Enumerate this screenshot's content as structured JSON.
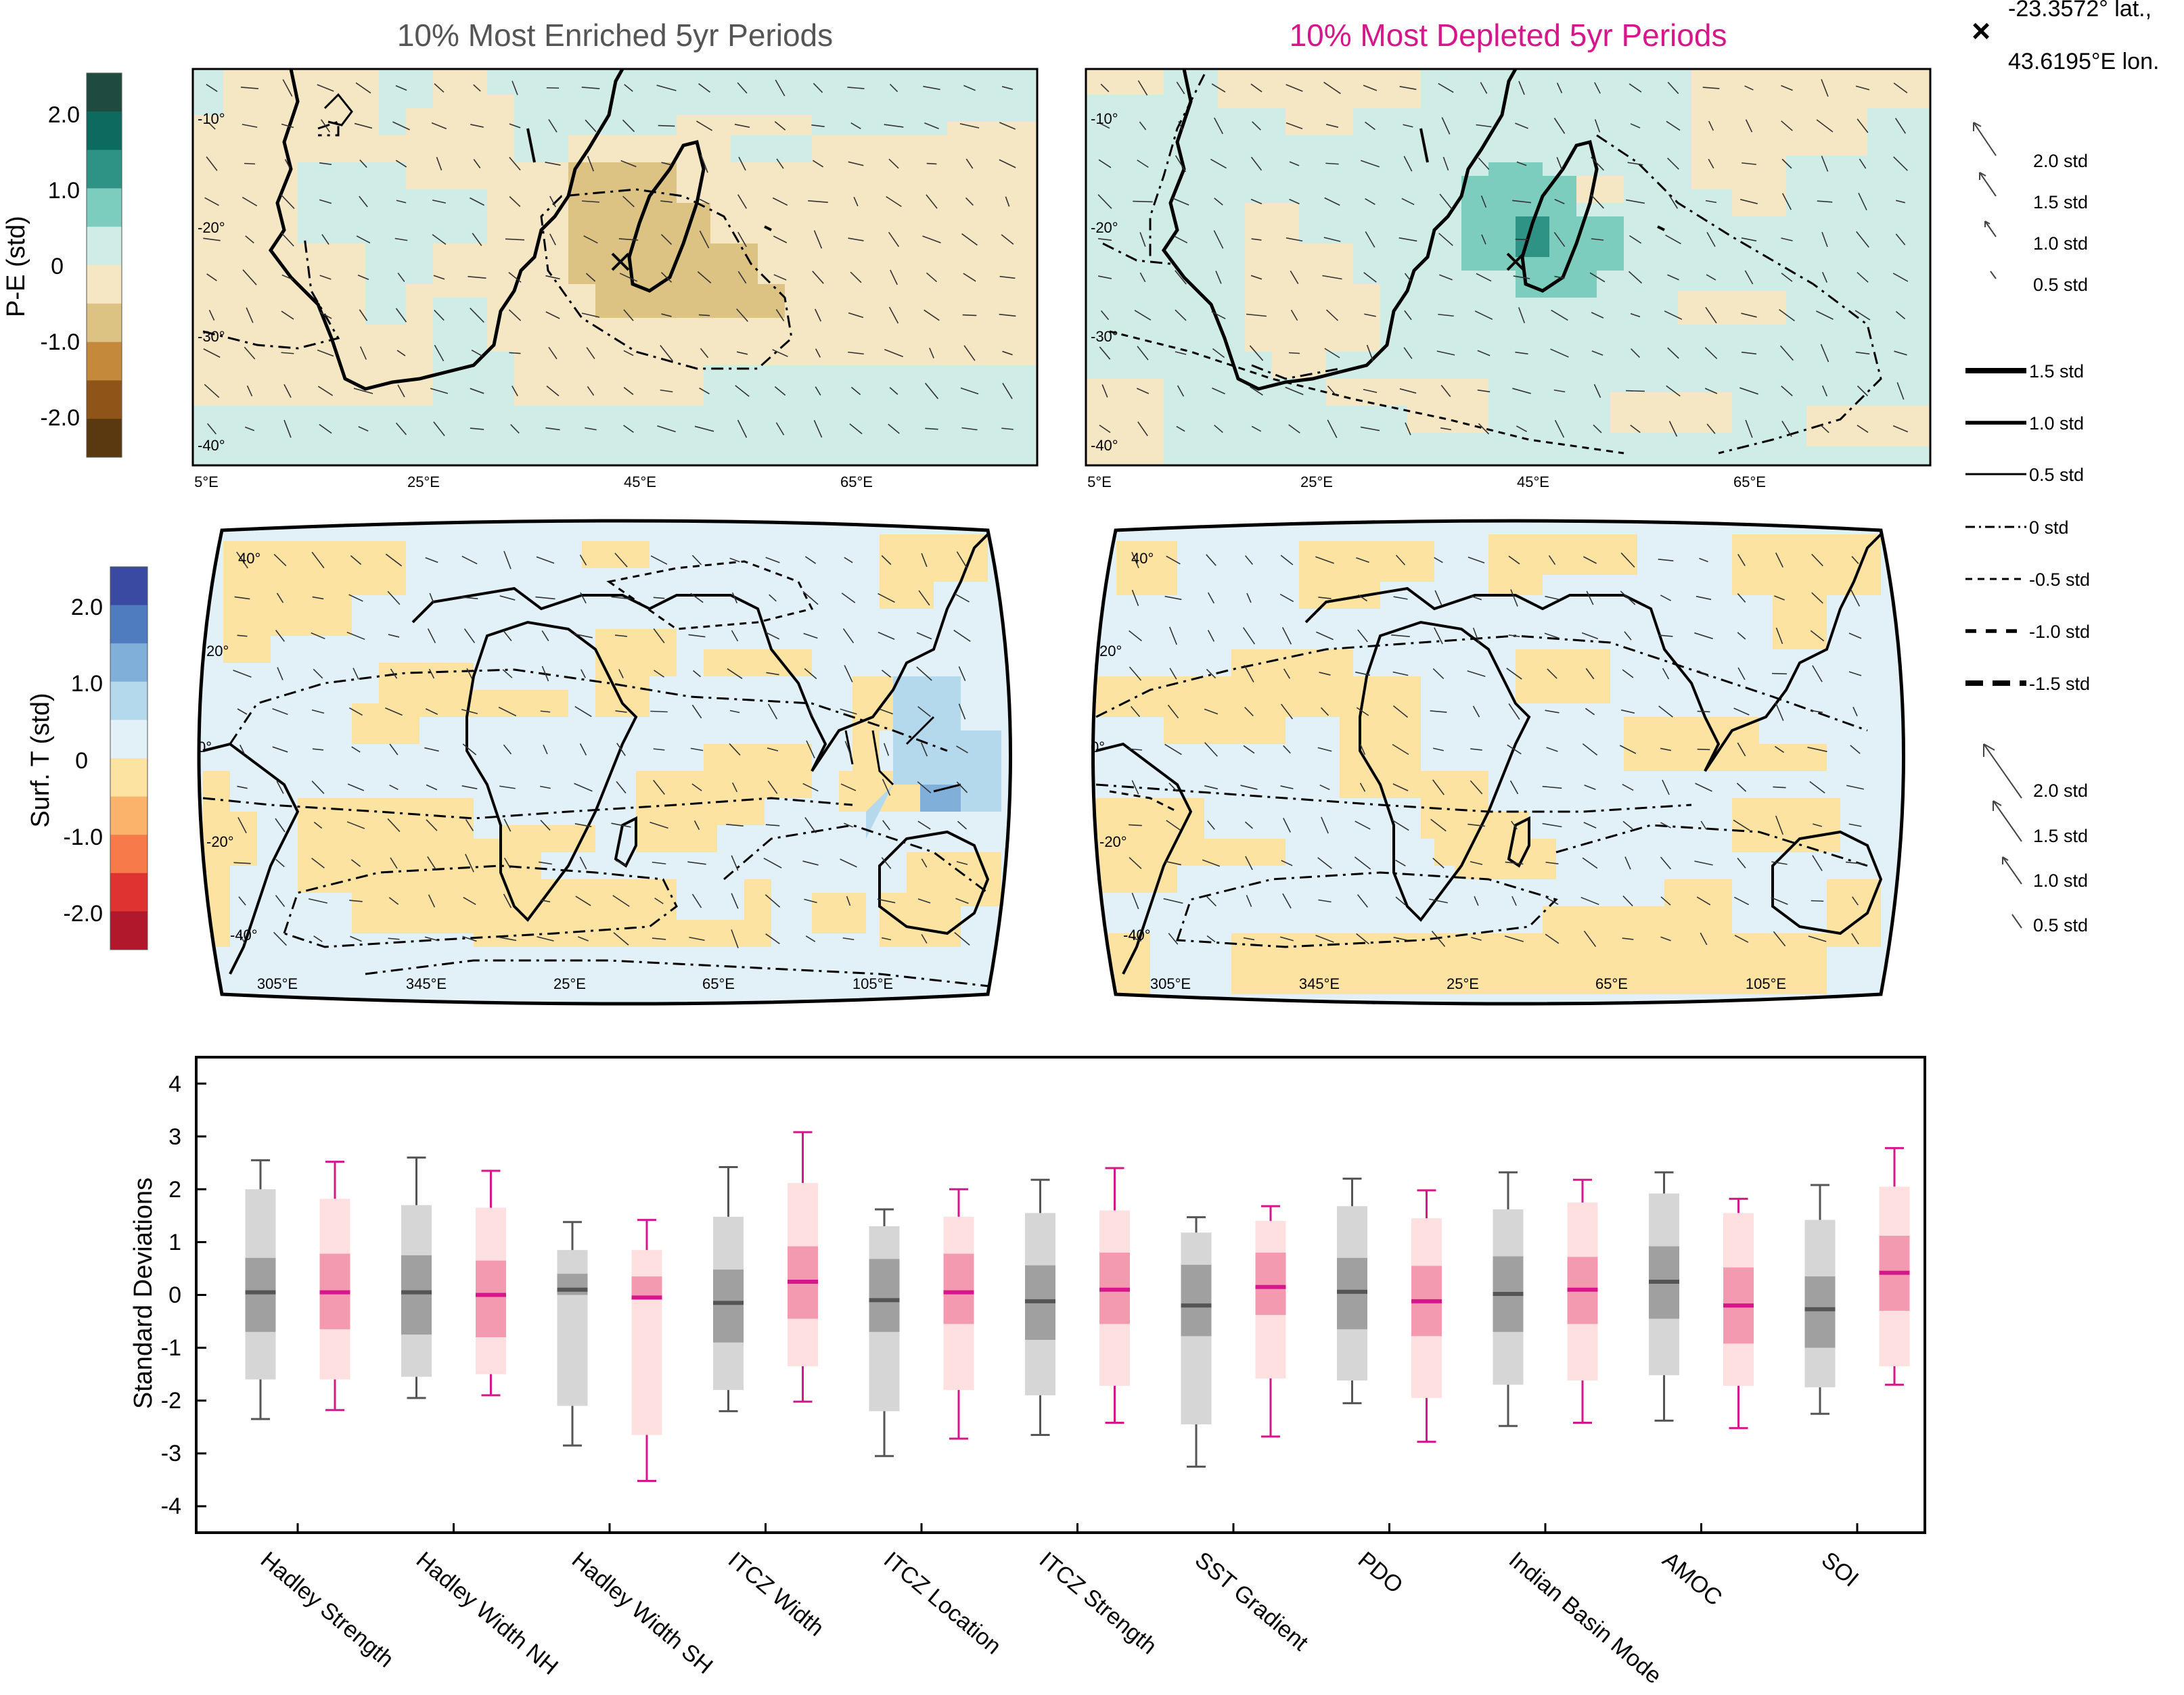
{
  "panels": {
    "enriched_title": "10% Most Enriched 5yr Periods",
    "depleted_title": "10% Most Depleted 5yr Periods",
    "title_colors": {
      "enriched": "#555555",
      "depleted": "#d6168b"
    }
  },
  "pe_maps": {
    "lat_ticks": [
      "-10°",
      "-20°",
      "-30°",
      "-40°"
    ],
    "lon_ticks": [
      "5°E",
      "25°E",
      "45°E",
      "65°E"
    ]
  },
  "temp_maps": {
    "lat_ticks": [
      "40°",
      "20°",
      "0°",
      "-20°",
      "-40°"
    ],
    "lon_ticks": [
      "305°E",
      "345°E",
      "25°E",
      "65°E",
      "105°E"
    ]
  },
  "site": {
    "marker": "×",
    "lat_label": "-23.3572° lat.,",
    "lon_label": "43.6195°E lon."
  },
  "colorbars": {
    "pe": {
      "label": "P-E (std)",
      "ticks": [
        "2.0",
        "1.0",
        "0",
        "-1.0",
        "-2.0"
      ],
      "colors": [
        "#1f4a3f",
        "#0c6b5e",
        "#2e9384",
        "#7ccdbd",
        "#cfece7",
        "#f5e6c4",
        "#dcc283",
        "#c4893a",
        "#8e5418",
        "#5a3810"
      ]
    },
    "temp": {
      "label": "Surf. T (std)",
      "ticks": [
        "2.0",
        "1.0",
        "0",
        "-1.0",
        "-2.0"
      ],
      "colors": [
        "#3a4aa2",
        "#4f7cbf",
        "#80b0da",
        "#b5d9ec",
        "#e2f1f8",
        "#fde3a2",
        "#fbb26a",
        "#f77a4a",
        "#de3330",
        "#b2182b"
      ]
    }
  },
  "legend": {
    "arrows_top": [
      "2.0 std",
      "1.5 std",
      "1.0 std",
      "0.5 std"
    ],
    "contours": [
      "1.5 std",
      "1.0 std",
      "0.5 std",
      "0 std",
      "-0.5 std",
      "-1.0 std",
      "-1.5 std"
    ],
    "arrows_bottom": [
      "2.0 std",
      "1.5 std",
      "1.0 std",
      "0.5 std"
    ]
  },
  "chart_data": {
    "type": "box",
    "ylabel": "Standard Deviations",
    "ylim": [
      -4.5,
      4.5
    ],
    "yticks": [
      "4",
      "3",
      "2",
      "1",
      "0",
      "-1",
      "-2",
      "-3",
      "-4"
    ],
    "categories": [
      "Hadley Strength",
      "Hadley Width NH",
      "Hadley Width SH",
      "ITCZ Width",
      "ITCZ Location",
      "ITCZ Strength",
      "SST Gradient",
      "PDO",
      "Indian Basin Mode",
      "AMOC",
      "SOI"
    ],
    "series": [
      {
        "color": "#555555",
        "light": "#d6d6d6",
        "mid": "#a0a0a0",
        "boxes": [
          {
            "whisker_low": -2.35,
            "outer_low": -1.6,
            "q1": -0.7,
            "median": 0.05,
            "q3": 0.7,
            "outer_high": 2.0,
            "whisker_high": 2.55
          },
          {
            "whisker_low": -1.95,
            "outer_low": -1.55,
            "q1": -0.75,
            "median": 0.05,
            "q3": 0.75,
            "outer_high": 1.7,
            "whisker_high": 2.6
          },
          {
            "whisker_low": -2.85,
            "outer_low": -2.1,
            "q1": 0.0,
            "median": 0.1,
            "q3": 0.4,
            "outer_high": 0.85,
            "whisker_high": 1.38
          },
          {
            "whisker_low": -2.2,
            "outer_low": -1.8,
            "q1": -0.9,
            "median": -0.15,
            "q3": 0.48,
            "outer_high": 1.48,
            "whisker_high": 2.42
          },
          {
            "whisker_low": -3.05,
            "outer_low": -2.2,
            "q1": -0.7,
            "median": -0.1,
            "q3": 0.68,
            "outer_high": 1.3,
            "whisker_high": 1.62
          },
          {
            "whisker_low": -2.65,
            "outer_low": -1.9,
            "q1": -0.85,
            "median": -0.12,
            "q3": 0.56,
            "outer_high": 1.55,
            "whisker_high": 2.18
          },
          {
            "whisker_low": -3.25,
            "outer_low": -2.45,
            "q1": -0.78,
            "median": -0.2,
            "q3": 0.57,
            "outer_high": 1.18,
            "whisker_high": 1.47
          },
          {
            "whisker_low": -2.05,
            "outer_low": -1.62,
            "q1": -0.65,
            "median": 0.06,
            "q3": 0.7,
            "outer_high": 1.68,
            "whisker_high": 2.2
          },
          {
            "whisker_low": -2.48,
            "outer_low": -1.7,
            "q1": -0.7,
            "median": 0.02,
            "q3": 0.73,
            "outer_high": 1.62,
            "whisker_high": 2.32
          },
          {
            "whisker_low": -2.38,
            "outer_low": -1.52,
            "q1": -0.45,
            "median": 0.25,
            "q3": 0.92,
            "outer_high": 1.92,
            "whisker_high": 2.32
          },
          {
            "whisker_low": -2.25,
            "outer_low": -1.75,
            "q1": -1.0,
            "median": -0.27,
            "q3": 0.35,
            "outer_high": 1.42,
            "whisker_high": 2.08
          }
        ]
      },
      {
        "color": "#d6168b",
        "light": "#fde0df",
        "mid": "#f49ab0",
        "boxes": [
          {
            "whisker_low": -2.18,
            "outer_low": -1.6,
            "q1": -0.65,
            "median": 0.05,
            "q3": 0.78,
            "outer_high": 1.82,
            "whisker_high": 2.52
          },
          {
            "whisker_low": -1.9,
            "outer_low": -1.5,
            "q1": -0.8,
            "median": 0.0,
            "q3": 0.65,
            "outer_high": 1.65,
            "whisker_high": 2.35
          },
          {
            "whisker_low": -3.52,
            "outer_low": -2.65,
            "q1": -0.08,
            "median": -0.05,
            "q3": 0.35,
            "outer_high": 0.85,
            "whisker_high": 1.42
          },
          {
            "whisker_low": -2.02,
            "outer_low": -1.35,
            "q1": -0.45,
            "median": 0.25,
            "q3": 0.92,
            "outer_high": 2.12,
            "whisker_high": 3.08
          },
          {
            "whisker_low": -2.72,
            "outer_low": -1.8,
            "q1": -0.55,
            "median": 0.05,
            "q3": 0.78,
            "outer_high": 1.48,
            "whisker_high": 2.0
          },
          {
            "whisker_low": -2.42,
            "outer_low": -1.72,
            "q1": -0.55,
            "median": 0.1,
            "q3": 0.8,
            "outer_high": 1.6,
            "whisker_high": 2.4
          },
          {
            "whisker_low": -2.68,
            "outer_low": -1.58,
            "q1": -0.38,
            "median": 0.15,
            "q3": 0.8,
            "outer_high": 1.4,
            "whisker_high": 1.68
          },
          {
            "whisker_low": -2.78,
            "outer_low": -1.95,
            "q1": -0.78,
            "median": -0.12,
            "q3": 0.55,
            "outer_high": 1.45,
            "whisker_high": 1.98
          },
          {
            "whisker_low": -2.42,
            "outer_low": -1.62,
            "q1": -0.55,
            "median": 0.1,
            "q3": 0.72,
            "outer_high": 1.75,
            "whisker_high": 2.18
          },
          {
            "whisker_low": -2.52,
            "outer_low": -1.72,
            "q1": -0.92,
            "median": -0.2,
            "q3": 0.52,
            "outer_high": 1.55,
            "whisker_high": 1.82
          },
          {
            "whisker_low": -1.7,
            "outer_low": -1.35,
            "q1": -0.3,
            "median": 0.42,
            "q3": 1.12,
            "outer_high": 2.05,
            "whisker_high": 2.78
          }
        ]
      }
    ]
  }
}
